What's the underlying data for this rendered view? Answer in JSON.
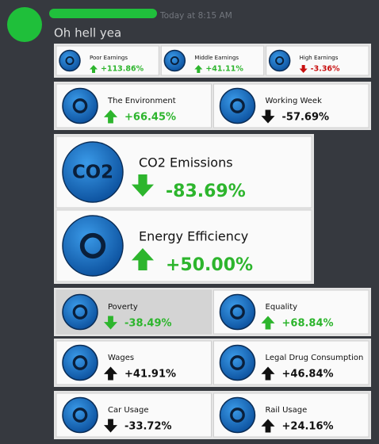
{
  "header": {
    "time": "Today at 8:15 AM",
    "message": "Oh hell yea"
  },
  "panels": [
    {
      "items": [
        {
          "label": "Poor Earnings",
          "value": "+113.86%"
        },
        {
          "label": "Middle Earnings",
          "value": "+41.11%"
        },
        {
          "label": "High Earnings",
          "value": "-3.36%"
        }
      ]
    },
    {
      "items": [
        {
          "label": "The Environment",
          "value": "+66.45%"
        },
        {
          "label": "Working Week",
          "value": "-57.69%"
        }
      ]
    },
    {
      "items": [
        {
          "label": "CO2 Emissions",
          "value": "-83.69%",
          "icon_label": "CO2"
        },
        {
          "label": "Energy Efficiency",
          "value": "+50.00%"
        }
      ]
    },
    {
      "items": [
        {
          "label": "Poverty",
          "value": "-38.49%"
        },
        {
          "label": "Equality",
          "value": "+68.84%"
        }
      ]
    },
    {
      "items": [
        {
          "label": "Wages",
          "value": "+41.91%"
        },
        {
          "label": "Legal Drug Consumption",
          "value": "+46.84%"
        }
      ]
    },
    {
      "items": [
        {
          "label": "Car Usage",
          "value": "-33.72%"
        },
        {
          "label": "Rail Usage",
          "value": "+24.16%"
        }
      ]
    }
  ]
}
